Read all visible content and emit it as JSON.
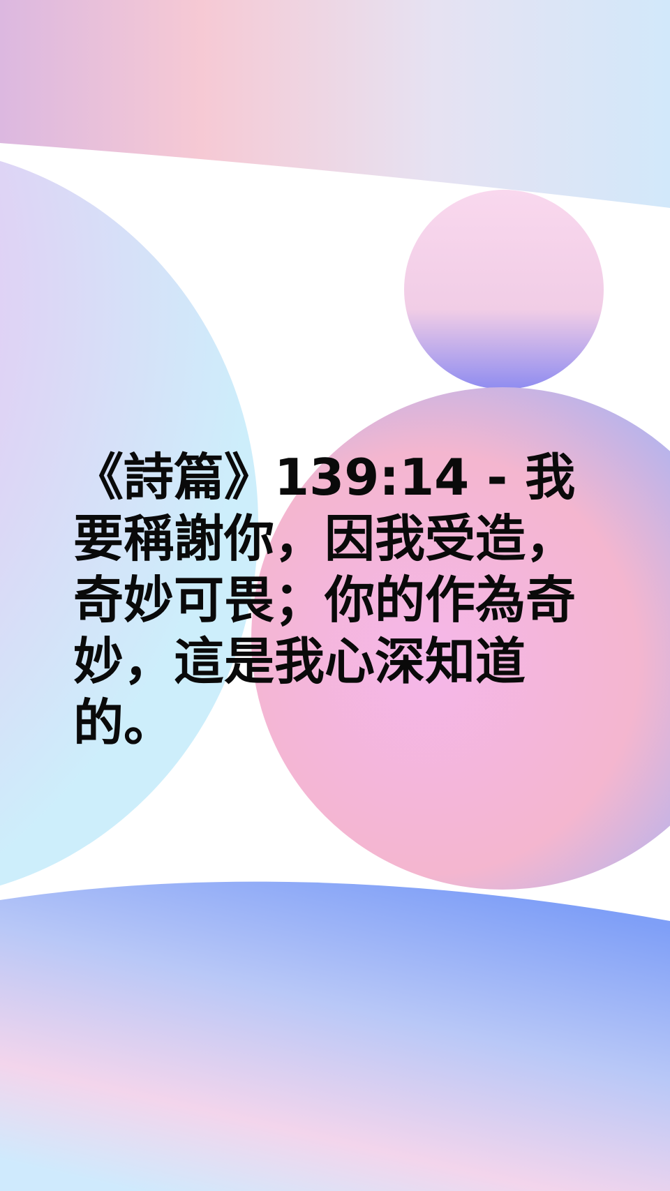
{
  "verse": {
    "text": "《詩篇》139:14 - 我要稱謝你，因我受造，奇妙可畏；你的作為奇妙，這是我心深知道的。"
  },
  "colors": {
    "background": "#ffffff",
    "text": "#0a0a0a",
    "top_band": [
      "#dcb8e0",
      "#f6c9d4",
      "#e6e2f2",
      "#d2e8fa"
    ],
    "left_circle": [
      "#ec8bea",
      "#e7c6f2",
      "#cdeefb"
    ],
    "small_circle": [
      "#f9d8ee",
      "#f1cde6",
      "#8f8cf0"
    ],
    "right_circle": [
      "#f4b6cf",
      "#f5b7ea",
      "#a9b3f2"
    ],
    "bottom_band": [
      "#7f9ff7",
      "#b9c8f7",
      "#f3d5ec",
      "#cfeafd"
    ]
  }
}
